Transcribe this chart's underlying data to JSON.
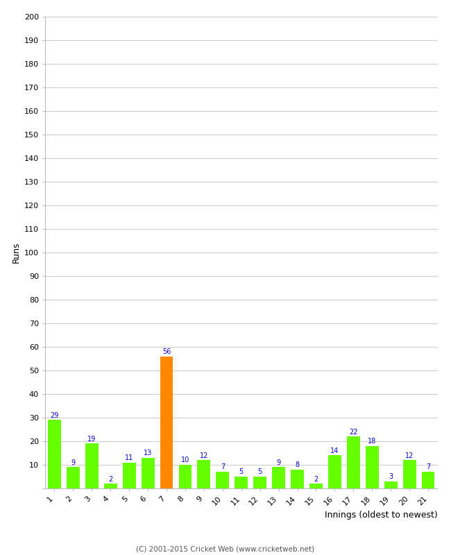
{
  "innings": [
    1,
    2,
    3,
    4,
    5,
    6,
    7,
    8,
    9,
    10,
    11,
    12,
    13,
    14,
    15,
    16,
    17,
    18,
    19,
    20,
    21
  ],
  "values": [
    29,
    9,
    19,
    2,
    11,
    13,
    56,
    10,
    12,
    7,
    5,
    5,
    9,
    8,
    2,
    14,
    22,
    18,
    3,
    12,
    7
  ],
  "highlight_index": 6,
  "bar_color": "#66ff00",
  "highlight_color": "#ff8800",
  "label_color": "#0000cc",
  "ylabel": "Runs",
  "xlabel": "Innings (oldest to newest)",
  "ylim": [
    0,
    200
  ],
  "yticks": [
    0,
    10,
    20,
    30,
    40,
    50,
    60,
    70,
    80,
    90,
    100,
    110,
    120,
    130,
    140,
    150,
    160,
    170,
    180,
    190,
    200
  ],
  "background_color": "#ffffff",
  "grid_color": "#cccccc",
  "footer": "(C) 2001-2015 Cricket Web (www.cricketweb.net)"
}
